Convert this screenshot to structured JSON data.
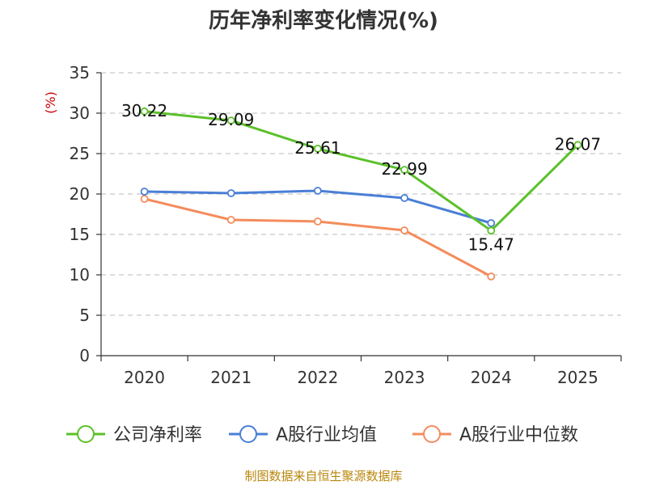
{
  "chart_data": {
    "type": "line",
    "title": "历年净利率变化情况(%)",
    "ylabel": "(%)",
    "xlabel": "",
    "categories": [
      "2020",
      "2021",
      "2022",
      "2023",
      "2024",
      "2025"
    ],
    "ylim": [
      0,
      35
    ],
    "yticks": [
      0,
      5,
      10,
      15,
      20,
      25,
      30,
      35
    ],
    "grid": true,
    "legend_position": "bottom",
    "series": [
      {
        "name": "公司净利率",
        "color": "#5bc12a",
        "values": [
          30.22,
          29.09,
          25.61,
          22.99,
          15.47,
          26.07
        ],
        "labels": [
          "30.22",
          "29.09",
          "25.61",
          "22.99",
          "15.47",
          "26.07"
        ]
      },
      {
        "name": "A股行业均值",
        "color": "#4a7fd6",
        "values": [
          20.3,
          20.1,
          20.4,
          19.5,
          16.4,
          null
        ]
      },
      {
        "name": "A股行业中位数",
        "color": "#f48c5c",
        "values": [
          19.4,
          16.8,
          16.6,
          15.5,
          9.8,
          null
        ]
      }
    ]
  },
  "source": "制图数据来自恒生聚源数据库"
}
